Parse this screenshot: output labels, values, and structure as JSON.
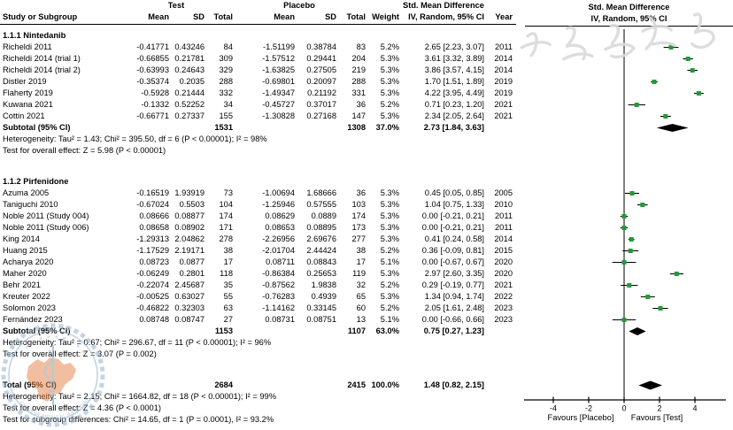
{
  "header": {
    "col_study": "Study or Subgroup",
    "group_test": "Test",
    "group_placebo": "Placebo",
    "col_mean": "Mean",
    "col_sd": "SD",
    "col_total": "Total",
    "col_weight": "Weight",
    "smd_header": "Std. Mean Difference",
    "smd_sub": "IV, Random, 95% CI",
    "col_year": "Year"
  },
  "colors": {
    "marker_green": "#229a38",
    "diamond_black": "#000000",
    "line_black": "#000000",
    "watermark_blue": "#9db9d3",
    "watermark_orange": "#e58a52",
    "watermark_gray": "#dadada"
  },
  "watermark": {
    "top_text": "中华医学会",
    "seal_text": "CHINESE MEDICAL ASSOCIATION"
  },
  "chart_data": {
    "type": "forest",
    "effect_measure": "Std. Mean Difference, IV, Random, 95% CI",
    "axis": {
      "ticks": [
        -4,
        -2,
        0,
        2,
        4
      ],
      "xlim": [
        -5.6,
        5.7
      ],
      "zero_line": 0,
      "xlabel_left": "Favours [Placebo]",
      "xlabel_right": "Favours [Test]"
    },
    "rows": [
      {
        "kind": "group",
        "label": "1.1.1 Nintedanib"
      },
      {
        "kind": "study",
        "study": "Richeldi 2011",
        "mean_t": "-0.41771",
        "sd_t": "0.43246",
        "n_t": "84",
        "mean_p": "-1.51199",
        "sd_p": "0.38784",
        "n_p": "83",
        "weight": "5.2%",
        "smd": "2.65 [2.23, 3.07]",
        "est": 2.65,
        "lo": 2.23,
        "hi": 3.07,
        "year": "2011"
      },
      {
        "kind": "study",
        "study": "Richeldi 2014 (trial 1)",
        "mean_t": "-0.66855",
        "sd_t": "0.21781",
        "n_t": "309",
        "mean_p": "-1.57512",
        "sd_p": "0.29441",
        "n_p": "204",
        "weight": "5.3%",
        "smd": "3.61 [3.32, 3.89]",
        "est": 3.61,
        "lo": 3.32,
        "hi": 3.89,
        "year": "2014"
      },
      {
        "kind": "study",
        "study": "Richeldi 2014 (trial 2)",
        "mean_t": "-0.63993",
        "sd_t": "0.24643",
        "n_t": "329",
        "mean_p": "-1.63825",
        "sd_p": "0.27505",
        "n_p": "219",
        "weight": "5.3%",
        "smd": "3.86 [3.57, 4.15]",
        "est": 3.86,
        "lo": 3.57,
        "hi": 4.15,
        "year": "2014"
      },
      {
        "kind": "study",
        "study": "Distler 2019",
        "mean_t": "-0.35374",
        "sd_t": "0.2035",
        "n_t": "288",
        "mean_p": "-0.69801",
        "sd_p": "0.20097",
        "n_p": "288",
        "weight": "5.3%",
        "smd": "1.70 [1.51, 1.89]",
        "est": 1.7,
        "lo": 1.51,
        "hi": 1.89,
        "year": "2019"
      },
      {
        "kind": "study",
        "study": "Flaherty 2019",
        "mean_t": "-0.5928",
        "sd_t": "0.21444",
        "n_t": "332",
        "mean_p": "-1.49347",
        "sd_p": "0.21192",
        "n_p": "331",
        "weight": "5.3%",
        "smd": "4.22 [3.95, 4.49]",
        "est": 4.22,
        "lo": 3.95,
        "hi": 4.49,
        "year": "2019"
      },
      {
        "kind": "study",
        "study": "Kuwana 2021",
        "mean_t": "-0.1332",
        "sd_t": "0.52252",
        "n_t": "34",
        "mean_p": "-0.45727",
        "sd_p": "0.37017",
        "n_p": "36",
        "weight": "5.2%",
        "smd": "0.71 [0.23, 1.20]",
        "est": 0.71,
        "lo": 0.23,
        "hi": 1.2,
        "year": "2021"
      },
      {
        "kind": "study",
        "study": "Cottin 2021",
        "mean_t": "-0.66771",
        "sd_t": "0.27337",
        "n_t": "155",
        "mean_p": "-1.30828",
        "sd_p": "0.27168",
        "n_p": "147",
        "weight": "5.3%",
        "smd": "2.34 [2.05, 2.64]",
        "est": 2.34,
        "lo": 2.05,
        "hi": 2.64,
        "year": "2021"
      },
      {
        "kind": "subtotal",
        "label": "Subtotal (95% CI)",
        "n_t": "1531",
        "n_p": "1308",
        "weight": "37.0%",
        "smd": "2.73 [1.84, 3.63]",
        "est": 2.73,
        "lo": 1.84,
        "hi": 3.63
      },
      {
        "kind": "note",
        "text": "Heterogeneity: Tau² = 1.43; Chi² = 395.50, df = 6 (P < 0.00001); I² = 98%"
      },
      {
        "kind": "note",
        "text": "Test for overall effect: Z = 5.98 (P < 0.00001)"
      },
      {
        "kind": "blank"
      },
      {
        "kind": "group",
        "label": "1.1.2 Pirfenidone"
      },
      {
        "kind": "study",
        "study": "Azuma 2005",
        "mean_t": "-0.16519",
        "sd_t": "1.93919",
        "n_t": "73",
        "mean_p": "-1.00694",
        "sd_p": "1.68666",
        "n_p": "36",
        "weight": "5.3%",
        "smd": "0.45 [0.05, 0.85]",
        "est": 0.45,
        "lo": 0.05,
        "hi": 0.85,
        "year": "2005"
      },
      {
        "kind": "study",
        "study": "Taniguchi 2010",
        "mean_t": "-0.67024",
        "sd_t": "0.5503",
        "n_t": "104",
        "mean_p": "-1.25946",
        "sd_p": "0.57555",
        "n_p": "103",
        "weight": "5.3%",
        "smd": "1.04 [0.75, 1.33]",
        "est": 1.04,
        "lo": 0.75,
        "hi": 1.33,
        "year": "2010"
      },
      {
        "kind": "study",
        "study": "Noble 2011 (Study 004)",
        "mean_t": "0.08666",
        "sd_t": "0.08877",
        "n_t": "174",
        "mean_p": "0.08629",
        "sd_p": "0.0889",
        "n_p": "174",
        "weight": "5.3%",
        "smd": "0.00 [-0.21, 0.21]",
        "est": 0.0,
        "lo": -0.21,
        "hi": 0.21,
        "year": "2011"
      },
      {
        "kind": "study",
        "study": "Noble 2011 (Study 006)",
        "mean_t": "0.08658",
        "sd_t": "0.08902",
        "n_t": "171",
        "mean_p": "0.08653",
        "sd_p": "0.08895",
        "n_p": "173",
        "weight": "5.3%",
        "smd": "0.00 [-0.21, 0.21]",
        "est": 0.0,
        "lo": -0.21,
        "hi": 0.21,
        "year": "2011"
      },
      {
        "kind": "study",
        "study": "King 2014",
        "mean_t": "-1.29313",
        "sd_t": "2.04862",
        "n_t": "278",
        "mean_p": "-2.26956",
        "sd_p": "2.69676",
        "n_p": "277",
        "weight": "5.3%",
        "smd": "0.41 [0.24, 0.58]",
        "est": 0.41,
        "lo": 0.24,
        "hi": 0.58,
        "year": "2014"
      },
      {
        "kind": "study",
        "study": "Huang 2015",
        "mean_t": "-1.17529",
        "sd_t": "2.19171",
        "n_t": "38",
        "mean_p": "-2.01704",
        "sd_p": "2.44424",
        "n_p": "38",
        "weight": "5.2%",
        "smd": "0.36 [-0.09, 0.81]",
        "est": 0.36,
        "lo": -0.09,
        "hi": 0.81,
        "year": "2015"
      },
      {
        "kind": "study",
        "study": "Acharya 2020",
        "mean_t": "0.08723",
        "sd_t": "0.0877",
        "n_t": "17",
        "mean_p": "0.08711",
        "sd_p": "0.08843",
        "n_p": "17",
        "weight": "5.1%",
        "smd": "0.00 [-0.67, 0.67]",
        "est": 0.0,
        "lo": -0.67,
        "hi": 0.67,
        "year": "2020"
      },
      {
        "kind": "study",
        "study": "Maher 2020",
        "mean_t": "-0.06249",
        "sd_t": "0.2801",
        "n_t": "118",
        "mean_p": "-0.86384",
        "sd_p": "0.25653",
        "n_p": "119",
        "weight": "5.3%",
        "smd": "2.97 [2.60, 3.35]",
        "est": 2.97,
        "lo": 2.6,
        "hi": 3.35,
        "year": "2020"
      },
      {
        "kind": "study",
        "study": "Behr 2021",
        "mean_t": "-0.22074",
        "sd_t": "2.45687",
        "n_t": "35",
        "mean_p": "-0.87562",
        "sd_p": "1.9838",
        "n_p": "32",
        "weight": "5.2%",
        "smd": "0.29 [-0.19, 0.77]",
        "est": 0.29,
        "lo": -0.19,
        "hi": 0.77,
        "year": "2021"
      },
      {
        "kind": "study",
        "study": "Kreuter 2022",
        "mean_t": "-0.00525",
        "sd_t": "0.63027",
        "n_t": "55",
        "mean_p": "-0.76283",
        "sd_p": "0.4939",
        "n_p": "65",
        "weight": "5.3%",
        "smd": "1.34 [0.94, 1.74]",
        "est": 1.34,
        "lo": 0.94,
        "hi": 1.74,
        "year": "2022"
      },
      {
        "kind": "study",
        "study": "Solomon 2023",
        "mean_t": "-0.46822",
        "sd_t": "0.32303",
        "n_t": "63",
        "mean_p": "-1.14162",
        "sd_p": "0.33145",
        "n_p": "60",
        "weight": "5.2%",
        "smd": "2.05 [1.61, 2.48]",
        "est": 2.05,
        "lo": 1.61,
        "hi": 2.48,
        "year": "2023"
      },
      {
        "kind": "study",
        "study": "Fernández 2023",
        "mean_t": "0.08748",
        "sd_t": "0.08747",
        "n_t": "27",
        "mean_p": "0.08731",
        "sd_p": "0.08751",
        "n_p": "13",
        "weight": "5.1%",
        "smd": "0.00 [-0.66, 0.66]",
        "est": 0.0,
        "lo": -0.66,
        "hi": 0.66,
        "year": "2023"
      },
      {
        "kind": "subtotal",
        "label": "Subtotal (95% CI)",
        "n_t": "1153",
        "n_p": "1107",
        "weight": "63.0%",
        "smd": "0.75 [0.27, 1.23]",
        "est": 0.75,
        "lo": 0.27,
        "hi": 1.23
      },
      {
        "kind": "note",
        "text": "Heterogeneity: Tau² = 0.67; Chi² = 296.67, df = 11 (P < 0.00001); I² = 96%"
      },
      {
        "kind": "note",
        "text": "Test for overall effect: Z = 3.07 (P = 0.002)"
      },
      {
        "kind": "blank"
      },
      {
        "kind": "total",
        "label": "Total (95% CI)",
        "n_t": "2684",
        "n_p": "2415",
        "weight": "100.0%",
        "smd": "1.48 [0.82, 2.15]",
        "est": 1.48,
        "lo": 0.82,
        "hi": 2.15
      },
      {
        "kind": "note",
        "text": "Heterogeneity: Tau² = 2.15; Chi² = 1664.82, df = 18 (P < 0.00001); I² = 99%"
      },
      {
        "kind": "note",
        "text": "Test for overall effect: Z = 4.36 (P < 0.0001)"
      },
      {
        "kind": "note",
        "text": "Test for subgroup differences: Chi² = 14.65, df = 1 (P = 0.0001), I² = 93.2%"
      }
    ]
  }
}
